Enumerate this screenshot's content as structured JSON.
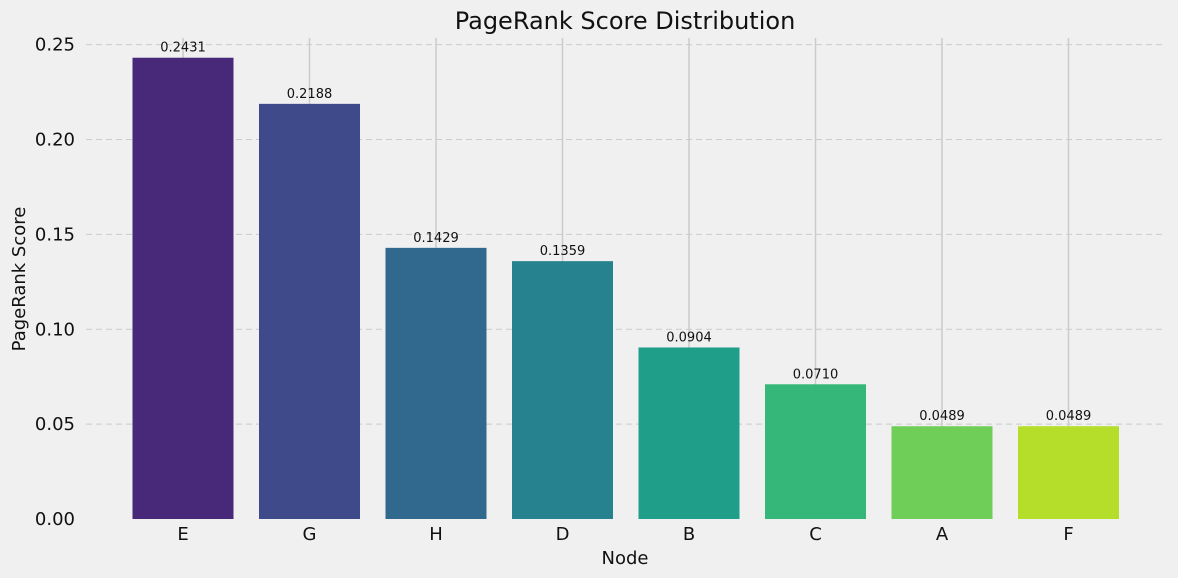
{
  "chart_data": {
    "type": "bar",
    "title": "PageRank Score Distribution",
    "xlabel": "Node",
    "ylabel": "PageRank Score",
    "categories": [
      "E",
      "G",
      "H",
      "D",
      "B",
      "C",
      "A",
      "F"
    ],
    "values": [
      0.2431,
      0.2188,
      0.1429,
      0.1359,
      0.0904,
      0.071,
      0.0489,
      0.0489
    ],
    "data_labels": [
      "0.2431",
      "0.2188",
      "0.1429",
      "0.1359",
      "0.0904",
      "0.0710",
      "0.0489",
      "0.0489"
    ],
    "colors": [
      "#482878",
      "#3e4a89",
      "#31688e",
      "#26828e",
      "#1f9e89",
      "#35b779",
      "#6ece58",
      "#b5de2b"
    ],
    "yticks": [
      0.0,
      0.05,
      0.1,
      0.15,
      0.2,
      0.25
    ],
    "ytick_labels": [
      "0.00",
      "0.05",
      "0.10",
      "0.15",
      "0.20",
      "0.25"
    ],
    "ylim": [
      0,
      0.2535
    ],
    "grid": true,
    "background": "#f0f0f0"
  }
}
